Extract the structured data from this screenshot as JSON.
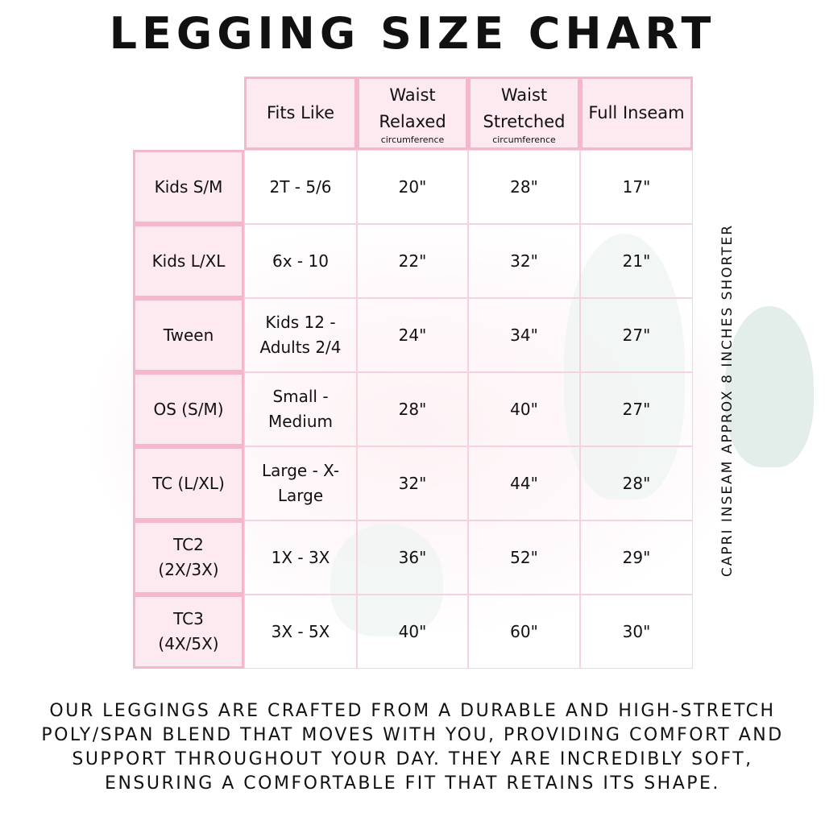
{
  "title": "LEGGING SIZE CHART",
  "table": {
    "headers": [
      {
        "label": "Fits Like",
        "sub": ""
      },
      {
        "label": "Waist Relaxed",
        "sub": "circumference"
      },
      {
        "label": "Waist Stretched",
        "sub": "circumference"
      },
      {
        "label": "Full Inseam",
        "sub": ""
      }
    ],
    "rows": [
      {
        "size": "Kids S/M",
        "fits": "2T - 5/6",
        "relaxed": "20\"",
        "stretched": "28\"",
        "inseam": "17\""
      },
      {
        "size": "Kids L/XL",
        "fits": "6x - 10",
        "relaxed": "22\"",
        "stretched": "32\"",
        "inseam": "21\""
      },
      {
        "size": "Tween",
        "fits": "Kids 12 - Adults 2/4",
        "relaxed": "24\"",
        "stretched": "34\"",
        "inseam": "27\""
      },
      {
        "size": "OS (S/M)",
        "fits": "Small - Medium",
        "relaxed": "28\"",
        "stretched": "40\"",
        "inseam": "27\""
      },
      {
        "size": "TC (L/XL)",
        "fits": "Large - X-Large",
        "relaxed": "32\"",
        "stretched": "44\"",
        "inseam": "28\""
      },
      {
        "size": "TC2 (2X/3X)",
        "fits": "1X - 3X",
        "relaxed": "36\"",
        "stretched": "52\"",
        "inseam": "29\""
      },
      {
        "size": "TC3 (4X/5X)",
        "fits": "3X - 5X",
        "relaxed": "40\"",
        "stretched": "60\"",
        "inseam": "30\""
      }
    ]
  },
  "side_note": "CAPRI INSEAM APPROX 8 INCHES SHORTER",
  "footer": "Our leggings are crafted from a durable and high-stretch poly/span blend that moves with you, providing comfort and support throughout your day. They are incredibly soft, ensuring a comfortable fit that retains its shape.",
  "colors": {
    "header_bg": "#fdeaf0",
    "border": "#f5b8ca"
  }
}
